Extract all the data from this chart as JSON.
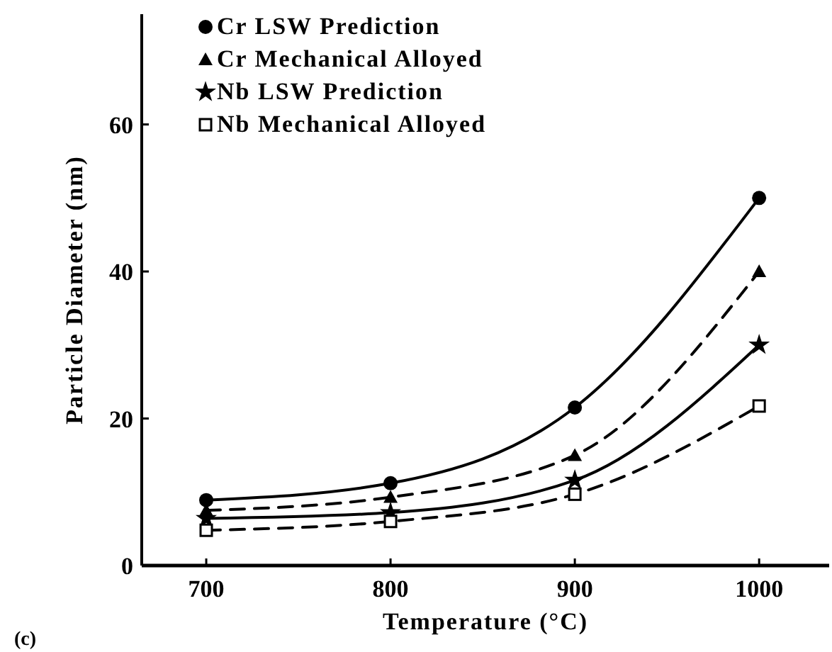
{
  "chart_data": {
    "type": "line",
    "xlabel": "Temperature (°C)",
    "ylabel": "Particle Diameter (nm)",
    "x": [
      700,
      800,
      900,
      1000
    ],
    "xlim": [
      665,
      1038
    ],
    "ylim": [
      0,
      75
    ],
    "xticks": [
      700,
      800,
      900,
      1000
    ],
    "yticks": [
      0,
      20,
      40,
      60
    ],
    "grid": false,
    "legend": "top left",
    "annotations": [
      "(c)"
    ],
    "series": [
      {
        "name": "Cr LSW Prediction",
        "color": "#000000",
        "marker": "circle",
        "line_style": "solid",
        "values": [
          8.9,
          11.2,
          21.5,
          50
        ]
      },
      {
        "name": "Cr Mechanical Alloyed",
        "color": "#000000",
        "marker": "triangle",
        "line_style": "dashed",
        "values": [
          7.5,
          9.3,
          15,
          40
        ]
      },
      {
        "name": "Nb LSW Prediction",
        "color": "#000000",
        "marker": "star",
        "line_style": "solid",
        "values": [
          6.4,
          7.2,
          11.6,
          30
        ]
      },
      {
        "name": "Nb Mechanical Alloyed",
        "color": "#000000",
        "marker": "square",
        "line_style": "dashed",
        "values": [
          4.8,
          6,
          9.7,
          21.7
        ]
      }
    ]
  }
}
